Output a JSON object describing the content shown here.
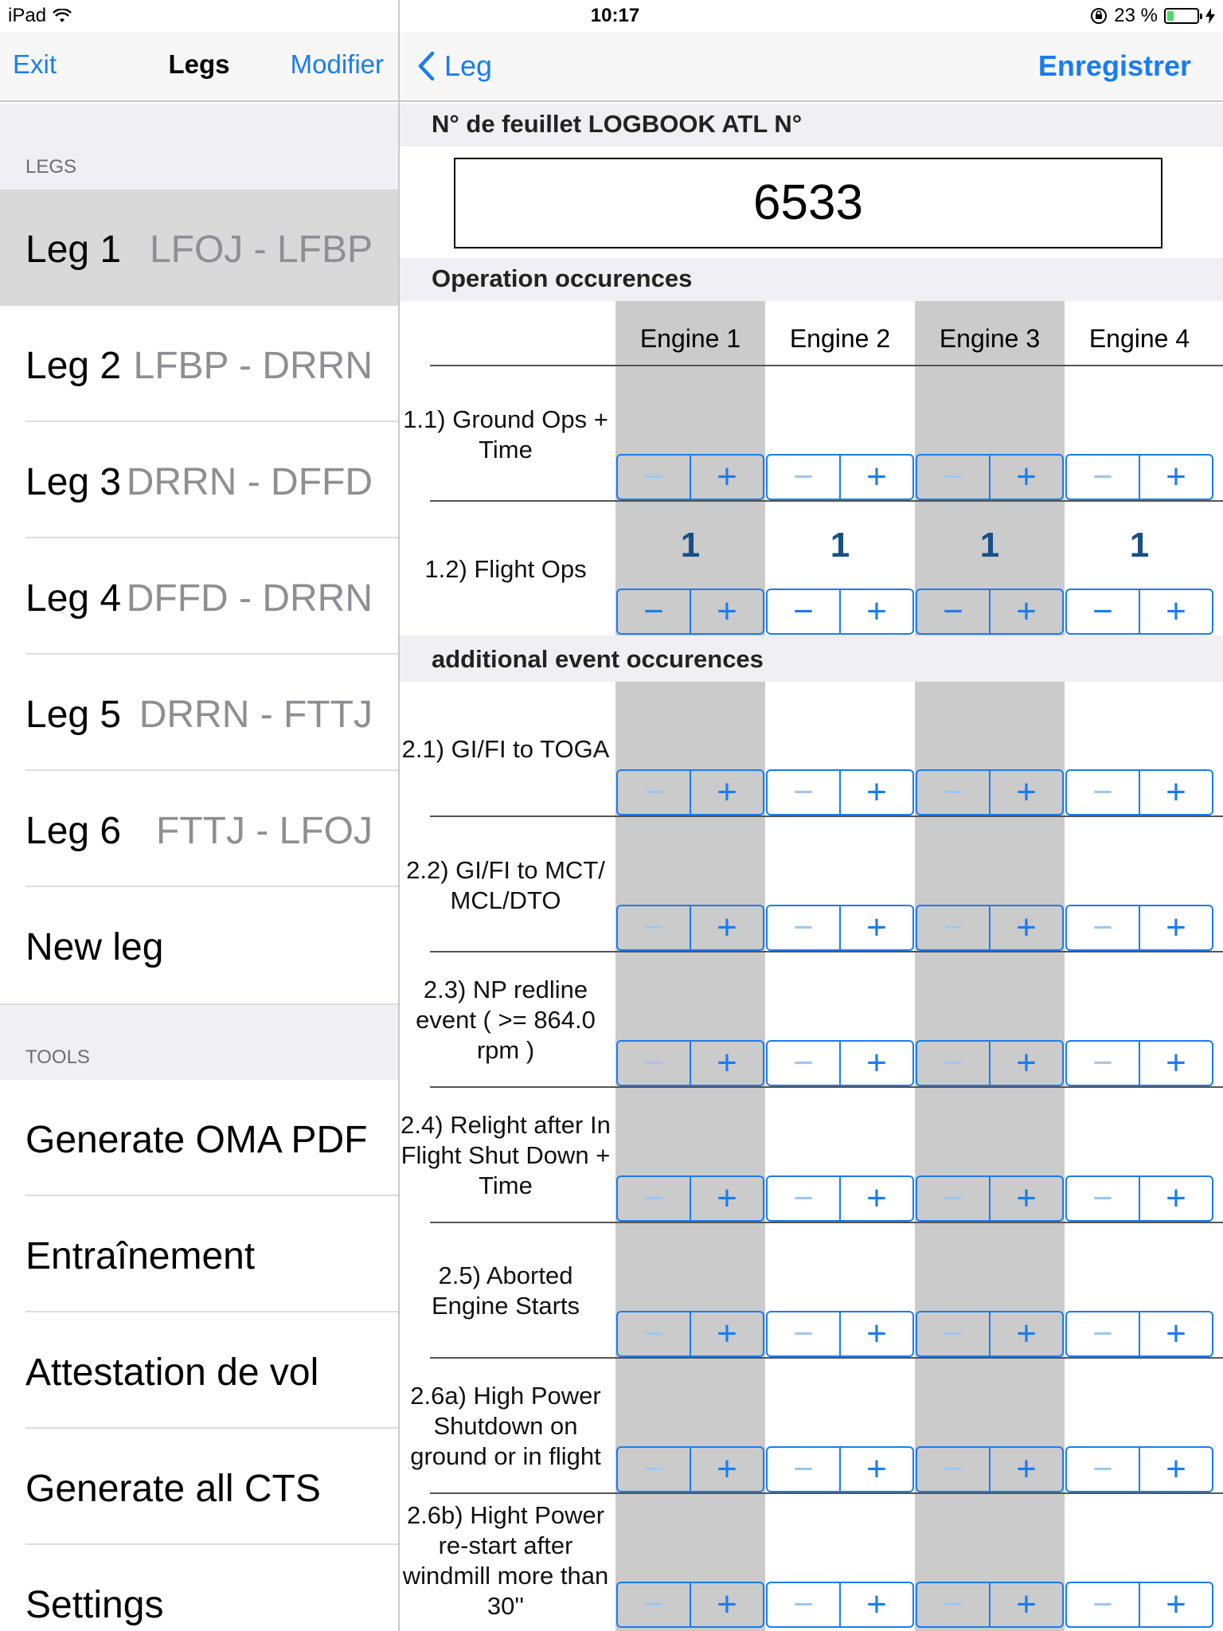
{
  "status_bar": {
    "device": "iPad",
    "time": "10:17",
    "battery": "23 %",
    "battery_level": 0.23
  },
  "left_nav": {
    "exit_label": "Exit",
    "title": "Legs",
    "edit_label": "Modifier"
  },
  "legs_section": {
    "header": "LEGS",
    "items": [
      {
        "label": "Leg 1",
        "route": "LFOJ - LFBP"
      },
      {
        "label": "Leg 2",
        "route": "LFBP - DRRN"
      },
      {
        "label": "Leg 3",
        "route": "DRRN - DFFD"
      },
      {
        "label": "Leg 4",
        "route": "DFFD - DRRN"
      },
      {
        "label": "Leg 5",
        "route": "DRRN - FTTJ"
      },
      {
        "label": "Leg 6",
        "route": "FTTJ - LFOJ"
      }
    ],
    "new_leg_label": "New leg"
  },
  "tools_section": {
    "header": "TOOLS",
    "items": [
      "Generate OMA PDF",
      "Entraînement",
      "Attestation de vol",
      "Generate all CTS",
      "Settings"
    ]
  },
  "right_nav": {
    "back_label": "Leg",
    "save_label": "Enregistrer"
  },
  "logbook": {
    "header": "N° de feuillet LOGBOOK ATL N°",
    "value": "6533"
  },
  "operation": {
    "header": "Operation occurences",
    "engines": [
      "Engine 1",
      "Engine 2",
      "Engine 3",
      "Engine 4"
    ],
    "rows": [
      {
        "label": "1.1) Ground Ops + Time",
        "values": [
          "",
          "",
          "",
          ""
        ]
      },
      {
        "label": "1.2) Flight Ops",
        "values": [
          "1",
          "1",
          "1",
          "1"
        ]
      }
    ]
  },
  "additional": {
    "header": "additional event occurences",
    "rows": [
      {
        "label": "2.1) GI/FI to TOGA"
      },
      {
        "label": "2.2) GI/FI to MCT/ MCL/DTO"
      },
      {
        "label": "2.3) NP redline event ( >= 864.0 rpm )"
      },
      {
        "label": "2.4) Relight after In Flight Shut Down + Time"
      },
      {
        "label": "2.5) Aborted Engine Starts"
      },
      {
        "label": "2.6a) High Power Shutdown on ground or in flight"
      },
      {
        "label": "2.6b) Hight Power re-start after windmill more than 30''"
      }
    ]
  },
  "stepper": {
    "minus": "−",
    "plus": "+"
  },
  "colors": {
    "accent": "#1a7cf0",
    "gray_column": "#cbcbcb",
    "value": "#1a4f86"
  }
}
